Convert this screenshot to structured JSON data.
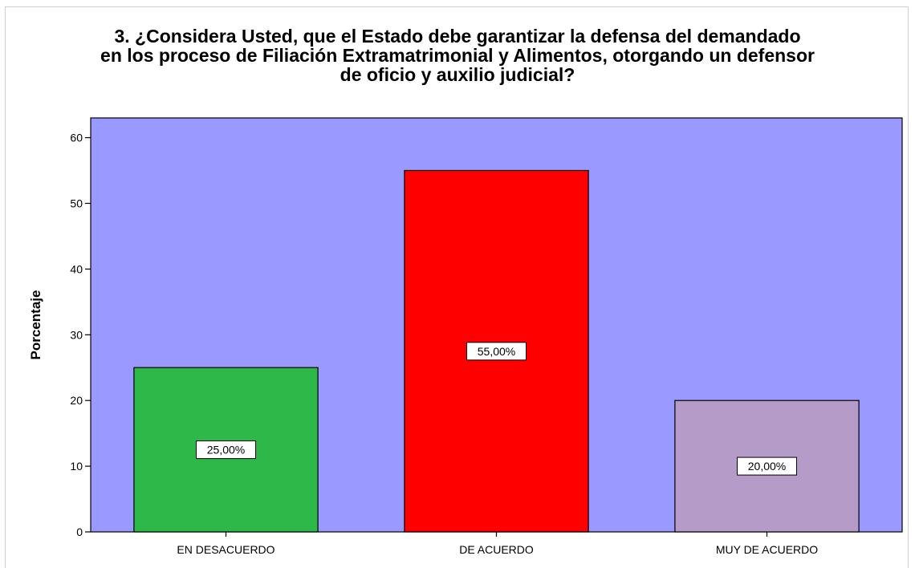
{
  "chart_data": {
    "type": "bar",
    "title": [
      "3. ¿Considera Usted, que el Estado debe garantizar la defensa del demandado",
      "en los proceso de Filiación Extramatrimonial y Alimentos, otorgando un defensor",
      "de oficio y auxilio judicial?"
    ],
    "ylabel": "Porcentaje",
    "xlabel": "",
    "categories": [
      "EN DESACUERDO",
      "DE ACUERDO",
      "MUY DE ACUERDO"
    ],
    "values": [
      25,
      55,
      20
    ],
    "data_labels": [
      "25,00%",
      "55,00%",
      "20,00%"
    ],
    "bar_colors": [
      "#2eb84a",
      "#ff0000",
      "#b59bc7"
    ],
    "plot_background": "#9999ff",
    "ylim": [
      0,
      63
    ],
    "yticks": [
      0,
      10,
      20,
      30,
      40,
      50,
      60
    ],
    "grid": false,
    "legend": "none"
  }
}
